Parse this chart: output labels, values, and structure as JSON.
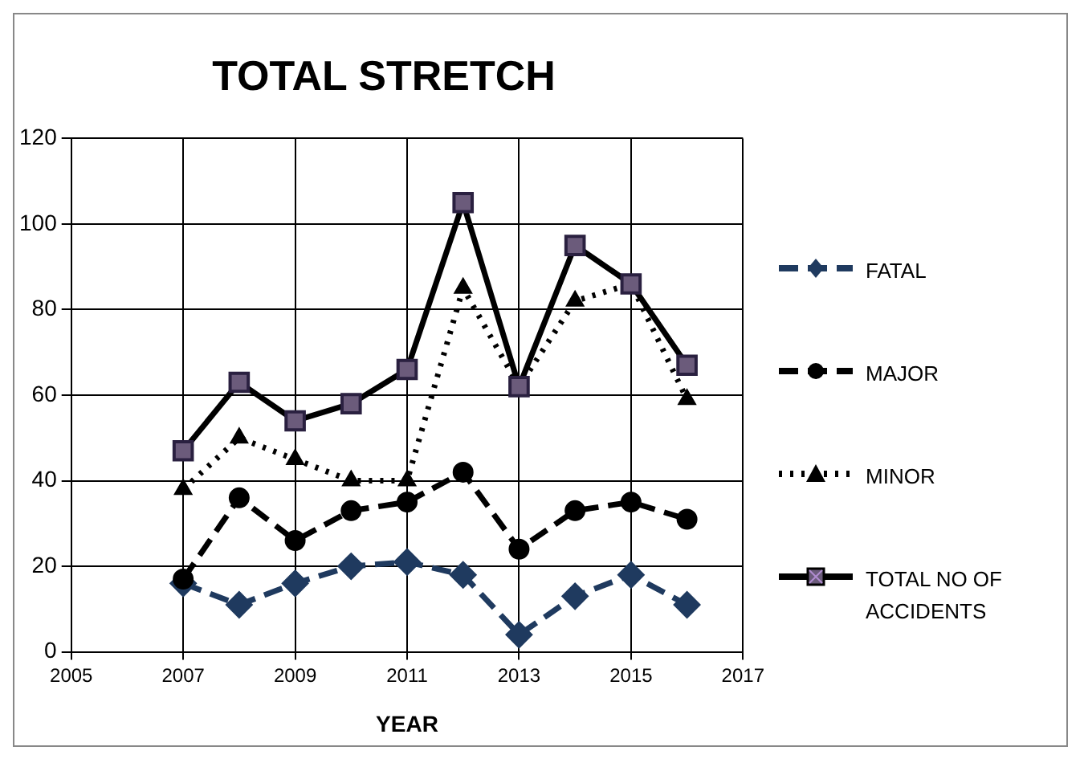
{
  "chart_data": {
    "type": "line",
    "title": "TOTAL STRETCH",
    "xlabel": "YEAR",
    "x": [
      2007,
      2008,
      2009,
      2010,
      2011,
      2012,
      2013,
      2014,
      2015,
      2016
    ],
    "xlim": [
      2005,
      2017
    ],
    "xticks": [
      2005,
      2007,
      2009,
      2011,
      2013,
      2015,
      2017
    ],
    "ylim": [
      0,
      120
    ],
    "yticks": [
      0,
      20,
      40,
      60,
      80,
      100,
      120
    ],
    "grid": true,
    "legend": "right",
    "series": [
      {
        "name": "FATAL",
        "color": "#1f3a5f",
        "marker": "diamond",
        "line_style": "dashed",
        "values": [
          16,
          11,
          16,
          20,
          21,
          18,
          4,
          13,
          18,
          11
        ]
      },
      {
        "name": "MAJOR",
        "color": "#000000",
        "marker": "circle",
        "line_style": "dashed",
        "values": [
          17,
          36,
          26,
          33,
          35,
          42,
          24,
          33,
          35,
          31
        ]
      },
      {
        "name": "MINOR",
        "color": "#000000",
        "marker": "triangle",
        "line_style": "dotted",
        "values": [
          38,
          50,
          45,
          40,
          40,
          85,
          62,
          82,
          86,
          59
        ]
      },
      {
        "name": "TOTAL NO OF ACCIDENTS",
        "color": "#000000",
        "marker": "square",
        "line_style": "solid",
        "values": [
          47,
          63,
          54,
          58,
          66,
          105,
          62,
          95,
          86,
          67
        ]
      }
    ]
  }
}
